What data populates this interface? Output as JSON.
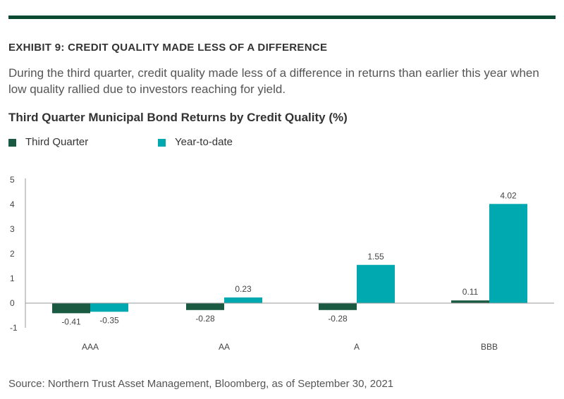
{
  "exhibit_title": "EXHIBIT 9: CREDIT QUALITY MADE LESS OF A DIFFERENCE",
  "subtitle": "During the third quarter, credit quality made less of a difference in returns than earlier this year when low quality rallied due to investors reaching for yield.",
  "chart_title": "Third Quarter Municipal Bond Returns by Credit Quality (%)",
  "source": "Source: Northern Trust Asset Management, Bloomberg, as of September 30, 2021",
  "colors": {
    "rule": "#0b4a32",
    "third_quarter": "#1a5a42",
    "year_to_date": "#00a8b0",
    "axis": "#9a9a9a",
    "text": "#444444"
  },
  "chart_data": {
    "type": "bar",
    "title": "Third Quarter Municipal Bond Returns by Credit Quality (%)",
    "categories": [
      "AAA",
      "AA",
      "A",
      "BBB"
    ],
    "series": [
      {
        "name": "Third Quarter",
        "values": [
          -0.41,
          -0.28,
          -0.28,
          0.11
        ],
        "labels": [
          "-0.41",
          "-0.28",
          "-0.28",
          "0.11"
        ]
      },
      {
        "name": "Year-to-date",
        "values": [
          -0.35,
          0.23,
          1.55,
          4.02
        ],
        "labels": [
          "-0.35",
          "0.23",
          "1.55",
          "4.02"
        ]
      }
    ],
    "yticks": [
      "5",
      "4",
      "3",
      "2",
      "1",
      "0",
      "-1"
    ],
    "ylim": [
      -1,
      5
    ],
    "grid": false,
    "legend_position": "top-left"
  }
}
